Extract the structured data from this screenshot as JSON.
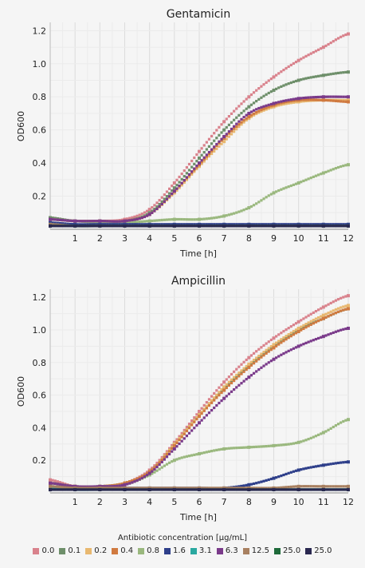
{
  "chart_data": [
    {
      "type": "scatter",
      "title": "Gentamicin",
      "xlabel": "Time [h]",
      "ylabel": "OD600",
      "xlim": [
        0,
        12
      ],
      "ylim": [
        0,
        1.25
      ],
      "xticks": [
        1,
        2,
        3,
        4,
        5,
        6,
        7,
        8,
        9,
        10,
        11,
        12
      ],
      "yticks": [
        0.2,
        0.4,
        0.6,
        0.8,
        1.0,
        1.2
      ],
      "grid": true,
      "series": [
        {
          "name": "0.0",
          "color": "#d9828c",
          "x": [
            0,
            1,
            2,
            3,
            4,
            5,
            6,
            7,
            8,
            9,
            10,
            11,
            12
          ],
          "y": [
            0.07,
            0.05,
            0.05,
            0.06,
            0.12,
            0.28,
            0.47,
            0.65,
            0.8,
            0.92,
            1.02,
            1.1,
            1.18
          ]
        },
        {
          "name": "0.1",
          "color": "#6e8f6a",
          "x": [
            0,
            1,
            2,
            3,
            4,
            5,
            6,
            7,
            8,
            9,
            10,
            11,
            12
          ],
          "y": [
            0.07,
            0.05,
            0.05,
            0.05,
            0.1,
            0.25,
            0.43,
            0.6,
            0.74,
            0.84,
            0.9,
            0.93,
            0.95
          ]
        },
        {
          "name": "0.2",
          "color": "#e8b870",
          "x": [
            0,
            1,
            2,
            3,
            4,
            5,
            6,
            7,
            8,
            9,
            10,
            11,
            12
          ],
          "y": [
            0.06,
            0.05,
            0.05,
            0.05,
            0.09,
            0.22,
            0.38,
            0.53,
            0.67,
            0.74,
            0.77,
            0.78,
            0.78
          ]
        },
        {
          "name": "0.4",
          "color": "#d07a40",
          "x": [
            0,
            1,
            2,
            3,
            4,
            5,
            6,
            7,
            8,
            9,
            10,
            11,
            12
          ],
          "y": [
            0.06,
            0.05,
            0.05,
            0.05,
            0.09,
            0.23,
            0.39,
            0.55,
            0.68,
            0.75,
            0.78,
            0.78,
            0.77
          ]
        },
        {
          "name": "0.8",
          "color": "#9ab87e",
          "x": [
            0,
            1,
            2,
            3,
            4,
            5,
            6,
            7,
            8,
            9,
            10,
            11,
            12
          ],
          "y": [
            0.06,
            0.05,
            0.04,
            0.04,
            0.05,
            0.06,
            0.06,
            0.08,
            0.13,
            0.22,
            0.28,
            0.34,
            0.39
          ]
        },
        {
          "name": "1.6",
          "color": "#2e3f8a",
          "x": [
            0,
            1,
            2,
            3,
            4,
            5,
            6,
            7,
            8,
            9,
            10,
            11,
            12
          ],
          "y": [
            0.04,
            0.03,
            0.03,
            0.03,
            0.03,
            0.03,
            0.03,
            0.03,
            0.03,
            0.03,
            0.03,
            0.03,
            0.03
          ]
        },
        {
          "name": "3.1",
          "color": "#2aa8a0",
          "x": [
            0,
            1,
            2,
            3,
            4,
            5,
            6,
            7,
            8,
            9,
            10,
            11,
            12
          ],
          "y": [
            0.03,
            0.02,
            0.02,
            0.02,
            0.02,
            0.02,
            0.02,
            0.02,
            0.02,
            0.02,
            0.02,
            0.02,
            0.02
          ]
        },
        {
          "name": "6.3",
          "color": "#7a3a8a",
          "x": [
            0,
            1,
            2,
            3,
            4,
            5,
            6,
            7,
            8,
            9,
            10,
            11,
            12
          ],
          "y": [
            0.06,
            0.05,
            0.05,
            0.05,
            0.09,
            0.23,
            0.4,
            0.56,
            0.7,
            0.76,
            0.79,
            0.8,
            0.8
          ]
        },
        {
          "name": "12.5",
          "color": "#a88060",
          "x": [
            0,
            1,
            2,
            3,
            4,
            5,
            6,
            7,
            8,
            9,
            10,
            11,
            12
          ],
          "y": [
            0.03,
            0.02,
            0.02,
            0.02,
            0.02,
            0.02,
            0.02,
            0.02,
            0.02,
            0.02,
            0.02,
            0.02,
            0.02
          ]
        },
        {
          "name": "25.0",
          "color": "#1e6a3a",
          "x": [
            0,
            1,
            2,
            3,
            4,
            5,
            6,
            7,
            8,
            9,
            10,
            11,
            12
          ],
          "y": [
            0.02,
            0.02,
            0.02,
            0.02,
            0.02,
            0.02,
            0.02,
            0.02,
            0.02,
            0.02,
            0.02,
            0.02,
            0.02
          ]
        },
        {
          "name": "25.0",
          "color": "#2a2850",
          "x": [
            0,
            1,
            2,
            3,
            4,
            5,
            6,
            7,
            8,
            9,
            10,
            11,
            12
          ],
          "y": [
            0.02,
            0.02,
            0.02,
            0.02,
            0.02,
            0.02,
            0.02,
            0.02,
            0.02,
            0.02,
            0.02,
            0.02,
            0.02
          ]
        }
      ]
    },
    {
      "type": "scatter",
      "title": "Ampicillin",
      "xlabel": "Time [h]",
      "ylabel": "OD600",
      "xlim": [
        0,
        12
      ],
      "ylim": [
        0,
        1.25
      ],
      "xticks": [
        1,
        2,
        3,
        4,
        5,
        6,
        7,
        8,
        9,
        10,
        11,
        12
      ],
      "yticks": [
        0.2,
        0.4,
        0.6,
        0.8,
        1.0,
        1.2
      ],
      "grid": true,
      "series": [
        {
          "name": "0.0",
          "color": "#d9828c",
          "x": [
            0,
            1,
            2,
            3,
            4,
            5,
            6,
            7,
            8,
            9,
            10,
            11,
            12
          ],
          "y": [
            0.08,
            0.04,
            0.04,
            0.06,
            0.14,
            0.31,
            0.5,
            0.68,
            0.83,
            0.95,
            1.05,
            1.14,
            1.21
          ]
        },
        {
          "name": "0.1",
          "color": "#6e8f6a",
          "x": [
            0,
            1,
            2,
            3,
            4,
            5,
            6,
            7,
            8,
            9,
            10,
            11,
            12
          ],
          "y": [
            0.06,
            0.04,
            0.04,
            0.06,
            0.13,
            0.3,
            0.48,
            0.64,
            0.78,
            0.9,
            1.0,
            1.07,
            1.13
          ]
        },
        {
          "name": "0.2",
          "color": "#e8b870",
          "x": [
            0,
            1,
            2,
            3,
            4,
            5,
            6,
            7,
            8,
            9,
            10,
            11,
            12
          ],
          "y": [
            0.06,
            0.04,
            0.04,
            0.06,
            0.13,
            0.3,
            0.48,
            0.65,
            0.79,
            0.91,
            1.01,
            1.09,
            1.15
          ]
        },
        {
          "name": "0.4",
          "color": "#d07a40",
          "x": [
            0,
            1,
            2,
            3,
            4,
            5,
            6,
            7,
            8,
            9,
            10,
            11,
            12
          ],
          "y": [
            0.06,
            0.04,
            0.04,
            0.06,
            0.13,
            0.29,
            0.47,
            0.63,
            0.77,
            0.89,
            0.99,
            1.07,
            1.13
          ]
        },
        {
          "name": "0.8",
          "color": "#9ab87e",
          "x": [
            0,
            1,
            2,
            3,
            4,
            5,
            6,
            7,
            8,
            9,
            10,
            11,
            12
          ],
          "y": [
            0.06,
            0.04,
            0.04,
            0.05,
            0.11,
            0.2,
            0.24,
            0.27,
            0.28,
            0.29,
            0.31,
            0.37,
            0.45
          ]
        },
        {
          "name": "1.6",
          "color": "#2e3f8a",
          "x": [
            0,
            1,
            2,
            3,
            4,
            5,
            6,
            7,
            8,
            9,
            10,
            11,
            12
          ],
          "y": [
            0.04,
            0.03,
            0.03,
            0.03,
            0.03,
            0.03,
            0.03,
            0.03,
            0.05,
            0.09,
            0.14,
            0.17,
            0.19
          ]
        },
        {
          "name": "3.1",
          "color": "#2aa8a0",
          "x": [
            0,
            1,
            2,
            3,
            4,
            5,
            6,
            7,
            8,
            9,
            10,
            11,
            12
          ],
          "y": [
            0.03,
            0.02,
            0.02,
            0.02,
            0.02,
            0.02,
            0.02,
            0.02,
            0.02,
            0.02,
            0.02,
            0.02,
            0.02
          ]
        },
        {
          "name": "6.3",
          "color": "#7a3a8a",
          "x": [
            0,
            1,
            2,
            3,
            4,
            5,
            6,
            7,
            8,
            9,
            10,
            11,
            12
          ],
          "y": [
            0.06,
            0.04,
            0.04,
            0.05,
            0.12,
            0.27,
            0.43,
            0.58,
            0.71,
            0.82,
            0.9,
            0.96,
            1.01
          ]
        },
        {
          "name": "12.5",
          "color": "#a88060",
          "x": [
            0,
            1,
            2,
            3,
            4,
            5,
            6,
            7,
            8,
            9,
            10,
            11,
            12
          ],
          "y": [
            0.04,
            0.03,
            0.03,
            0.03,
            0.03,
            0.03,
            0.03,
            0.03,
            0.03,
            0.03,
            0.04,
            0.04,
            0.04
          ]
        },
        {
          "name": "25.0",
          "color": "#1e6a3a",
          "x": [
            0,
            1,
            2,
            3,
            4,
            5,
            6,
            7,
            8,
            9,
            10,
            11,
            12
          ],
          "y": [
            0.02,
            0.02,
            0.02,
            0.02,
            0.02,
            0.02,
            0.02,
            0.02,
            0.02,
            0.02,
            0.02,
            0.02,
            0.02
          ]
        },
        {
          "name": "25.0",
          "color": "#2a2850",
          "x": [
            0,
            1,
            2,
            3,
            4,
            5,
            6,
            7,
            8,
            9,
            10,
            11,
            12
          ],
          "y": [
            0.02,
            0.02,
            0.02,
            0.02,
            0.02,
            0.02,
            0.02,
            0.02,
            0.02,
            0.02,
            0.02,
            0.02,
            0.02
          ]
        }
      ]
    }
  ],
  "legend": {
    "title": "Antibiotic concentration [µg/mL]",
    "placement": "bottom",
    "items": [
      {
        "label": "0.0",
        "color": "#d9828c"
      },
      {
        "label": "0.1",
        "color": "#6e8f6a"
      },
      {
        "label": "0.2",
        "color": "#e8b870"
      },
      {
        "label": "0.4",
        "color": "#d07a40"
      },
      {
        "label": "0.8",
        "color": "#9ab87e"
      },
      {
        "label": "1.6",
        "color": "#2e3f8a"
      },
      {
        "label": "3.1",
        "color": "#2aa8a0"
      },
      {
        "label": "6.3",
        "color": "#7a3a8a"
      },
      {
        "label": "12.5",
        "color": "#a88060"
      },
      {
        "label": "25.0",
        "color": "#1e6a3a"
      },
      {
        "label": "25.0",
        "color": "#2a2850"
      }
    ]
  }
}
